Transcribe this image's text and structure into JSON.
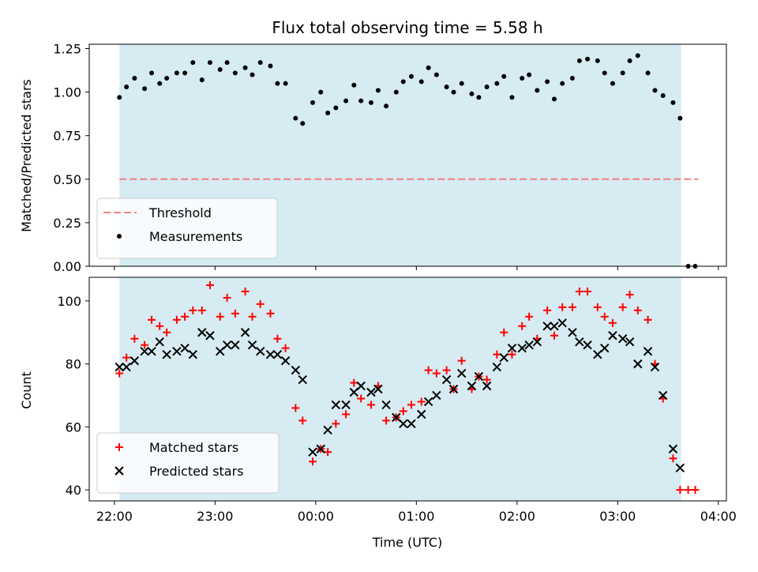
{
  "chart_data": {
    "type": "scatter",
    "title": "Flux total observing time = 5.58 h",
    "xlabel": "Time (UTC)",
    "x_unit": "hours since 22:00 UTC",
    "xlim": [
      -0.25,
      6.08
    ],
    "x_ticks": [
      {
        "x": 0,
        "label": "22:00"
      },
      {
        "x": 1,
        "label": "23:00"
      },
      {
        "x": 2,
        "label": "00:00"
      },
      {
        "x": 3,
        "label": "01:00"
      },
      {
        "x": 4,
        "label": "02:00"
      },
      {
        "x": 5,
        "label": "03:00"
      },
      {
        "x": 6,
        "label": "04:00"
      }
    ],
    "observing_window": {
      "start": 0.05,
      "end": 5.63,
      "color": "#add8e6"
    },
    "panels": [
      {
        "name": "top",
        "ylabel": "Matched/Predicted stars",
        "ylim": [
          0,
          1.275
        ],
        "y_ticks": [
          {
            "y": 0,
            "label": "0.00"
          },
          {
            "y": 0.25,
            "label": "0.25"
          },
          {
            "y": 0.5,
            "label": "0.50"
          },
          {
            "y": 0.75,
            "label": "0.75"
          },
          {
            "y": 1.0,
            "label": "1.00"
          },
          {
            "y": 1.25,
            "label": "1.25"
          }
        ],
        "threshold": {
          "name": "Threshold",
          "value": 0.5,
          "x_start": 0.05,
          "x_end": 5.8,
          "color": "#f08080"
        },
        "series": [
          {
            "name": "Measurements",
            "marker": "dot",
            "color": "#000000",
            "points": [
              [
                0.05,
                0.97
              ],
              [
                0.12,
                1.03
              ],
              [
                0.2,
                1.08
              ],
              [
                0.3,
                1.02
              ],
              [
                0.37,
                1.11
              ],
              [
                0.45,
                1.05
              ],
              [
                0.52,
                1.08
              ],
              [
                0.62,
                1.11
              ],
              [
                0.7,
                1.11
              ],
              [
                0.78,
                1.17
              ],
              [
                0.87,
                1.07
              ],
              [
                0.95,
                1.17
              ],
              [
                1.05,
                1.13
              ],
              [
                1.12,
                1.17
              ],
              [
                1.2,
                1.11
              ],
              [
                1.3,
                1.14
              ],
              [
                1.37,
                1.1
              ],
              [
                1.45,
                1.17
              ],
              [
                1.55,
                1.15
              ],
              [
                1.62,
                1.05
              ],
              [
                1.7,
                1.05
              ],
              [
                1.8,
                0.85
              ],
              [
                1.87,
                0.82
              ],
              [
                1.97,
                0.94
              ],
              [
                2.05,
                1.0
              ],
              [
                2.12,
                0.88
              ],
              [
                2.2,
                0.91
              ],
              [
                2.3,
                0.95
              ],
              [
                2.38,
                1.04
              ],
              [
                2.45,
                0.95
              ],
              [
                2.55,
                0.94
              ],
              [
                2.62,
                1.01
              ],
              [
                2.7,
                0.92
              ],
              [
                2.8,
                1.0
              ],
              [
                2.87,
                1.06
              ],
              [
                2.95,
                1.09
              ],
              [
                3.05,
                1.06
              ],
              [
                3.12,
                1.14
              ],
              [
                3.2,
                1.1
              ],
              [
                3.3,
                1.03
              ],
              [
                3.37,
                1.0
              ],
              [
                3.45,
                1.05
              ],
              [
                3.55,
                0.99
              ],
              [
                3.62,
                0.97
              ],
              [
                3.7,
                1.03
              ],
              [
                3.8,
                1.05
              ],
              [
                3.87,
                1.09
              ],
              [
                3.95,
                0.97
              ],
              [
                4.05,
                1.08
              ],
              [
                4.12,
                1.1
              ],
              [
                4.2,
                1.01
              ],
              [
                4.3,
                1.06
              ],
              [
                4.37,
                0.96
              ],
              [
                4.45,
                1.05
              ],
              [
                4.55,
                1.08
              ],
              [
                4.62,
                1.18
              ],
              [
                4.7,
                1.19
              ],
              [
                4.8,
                1.18
              ],
              [
                4.87,
                1.11
              ],
              [
                4.95,
                1.05
              ],
              [
                5.05,
                1.11
              ],
              [
                5.12,
                1.18
              ],
              [
                5.2,
                1.21
              ],
              [
                5.3,
                1.11
              ],
              [
                5.37,
                1.01
              ],
              [
                5.45,
                0.98
              ],
              [
                5.55,
                0.94
              ],
              [
                5.62,
                0.85
              ],
              [
                5.7,
                0.0
              ],
              [
                5.77,
                0.0
              ]
            ]
          }
        ],
        "legend": {
          "position": "lower-left",
          "entries": [
            "Threshold",
            "Measurements"
          ]
        }
      },
      {
        "name": "bottom",
        "ylabel": "Count",
        "ylim": [
          36.5,
          107.5
        ],
        "y_ticks": [
          {
            "y": 40,
            "label": "40"
          },
          {
            "y": 60,
            "label": "60"
          },
          {
            "y": 80,
            "label": "80"
          },
          {
            "y": 100,
            "label": "100"
          }
        ],
        "series": [
          {
            "name": "Matched stars",
            "marker": "plus",
            "color": "#ff0000",
            "points": [
              [
                0.05,
                77
              ],
              [
                0.12,
                82
              ],
              [
                0.2,
                88
              ],
              [
                0.3,
                86
              ],
              [
                0.37,
                94
              ],
              [
                0.45,
                92
              ],
              [
                0.52,
                90
              ],
              [
                0.62,
                94
              ],
              [
                0.7,
                95
              ],
              [
                0.78,
                97
              ],
              [
                0.87,
                97
              ],
              [
                0.95,
                105
              ],
              [
                1.05,
                95
              ],
              [
                1.12,
                101
              ],
              [
                1.2,
                96
              ],
              [
                1.3,
                103
              ],
              [
                1.37,
                95
              ],
              [
                1.45,
                99
              ],
              [
                1.55,
                96
              ],
              [
                1.62,
                88
              ],
              [
                1.7,
                85
              ],
              [
                1.8,
                66
              ],
              [
                1.87,
                62
              ],
              [
                1.97,
                49
              ],
              [
                2.05,
                53
              ],
              [
                2.12,
                52
              ],
              [
                2.2,
                61
              ],
              [
                2.3,
                64
              ],
              [
                2.38,
                74
              ],
              [
                2.45,
                69
              ],
              [
                2.55,
                67
              ],
              [
                2.62,
                73
              ],
              [
                2.7,
                62
              ],
              [
                2.8,
                63
              ],
              [
                2.87,
                65
              ],
              [
                2.95,
                67
              ],
              [
                3.05,
                68
              ],
              [
                3.12,
                78
              ],
              [
                3.2,
                77
              ],
              [
                3.3,
                78
              ],
              [
                3.37,
                72
              ],
              [
                3.45,
                81
              ],
              [
                3.55,
                72
              ],
              [
                3.62,
                76
              ],
              [
                3.7,
                75
              ],
              [
                3.8,
                83
              ],
              [
                3.87,
                90
              ],
              [
                3.95,
                83
              ],
              [
                4.05,
                92
              ],
              [
                4.12,
                95
              ],
              [
                4.2,
                88
              ],
              [
                4.3,
                97
              ],
              [
                4.37,
                89
              ],
              [
                4.45,
                98
              ],
              [
                4.55,
                98
              ],
              [
                4.62,
                103
              ],
              [
                4.7,
                103
              ],
              [
                4.8,
                98
              ],
              [
                4.87,
                95
              ],
              [
                4.95,
                93
              ],
              [
                5.05,
                98
              ],
              [
                5.12,
                102
              ],
              [
                5.2,
                97
              ],
              [
                5.3,
                94
              ],
              [
                5.37,
                80
              ],
              [
                5.45,
                69
              ],
              [
                5.55,
                50
              ],
              [
                5.62,
                40
              ],
              [
                5.7,
                40
              ],
              [
                5.77,
                40
              ]
            ]
          },
          {
            "name": "Predicted stars",
            "marker": "x",
            "color": "#000000",
            "points": [
              [
                0.05,
                79
              ],
              [
                0.12,
                79
              ],
              [
                0.2,
                81
              ],
              [
                0.3,
                84
              ],
              [
                0.37,
                84
              ],
              [
                0.45,
                87
              ],
              [
                0.52,
                83
              ],
              [
                0.62,
                84
              ],
              [
                0.7,
                85
              ],
              [
                0.78,
                83
              ],
              [
                0.87,
                90
              ],
              [
                0.95,
                89
              ],
              [
                1.05,
                84
              ],
              [
                1.12,
                86
              ],
              [
                1.2,
                86
              ],
              [
                1.3,
                90
              ],
              [
                1.37,
                86
              ],
              [
                1.45,
                84
              ],
              [
                1.55,
                83
              ],
              [
                1.62,
                83
              ],
              [
                1.7,
                81
              ],
              [
                1.8,
                78
              ],
              [
                1.87,
                75
              ],
              [
                1.97,
                52
              ],
              [
                2.05,
                53
              ],
              [
                2.12,
                59
              ],
              [
                2.2,
                67
              ],
              [
                2.3,
                67
              ],
              [
                2.38,
                71
              ],
              [
                2.45,
                73
              ],
              [
                2.55,
                71
              ],
              [
                2.62,
                72
              ],
              [
                2.7,
                67
              ],
              [
                2.8,
                63
              ],
              [
                2.87,
                61
              ],
              [
                2.95,
                61
              ],
              [
                3.05,
                64
              ],
              [
                3.12,
                68
              ],
              [
                3.2,
                70
              ],
              [
                3.3,
                75
              ],
              [
                3.37,
                72
              ],
              [
                3.45,
                77
              ],
              [
                3.55,
                73
              ],
              [
                3.62,
                76
              ],
              [
                3.7,
                73
              ],
              [
                3.8,
                79
              ],
              [
                3.87,
                82
              ],
              [
                3.95,
                85
              ],
              [
                4.05,
                85
              ],
              [
                4.12,
                86
              ],
              [
                4.2,
                87
              ],
              [
                4.3,
                92
              ],
              [
                4.37,
                92
              ],
              [
                4.45,
                93
              ],
              [
                4.55,
                90
              ],
              [
                4.62,
                87
              ],
              [
                4.7,
                86
              ],
              [
                4.8,
                83
              ],
              [
                4.87,
                85
              ],
              [
                4.95,
                89
              ],
              [
                5.05,
                88
              ],
              [
                5.12,
                87
              ],
              [
                5.2,
                80
              ],
              [
                5.3,
                84
              ],
              [
                5.37,
                79
              ],
              [
                5.45,
                70
              ],
              [
                5.55,
                53
              ],
              [
                5.62,
                47
              ]
            ]
          }
        ],
        "legend": {
          "position": "lower-left",
          "entries": [
            "Matched stars",
            "Predicted stars"
          ]
        }
      }
    ]
  }
}
